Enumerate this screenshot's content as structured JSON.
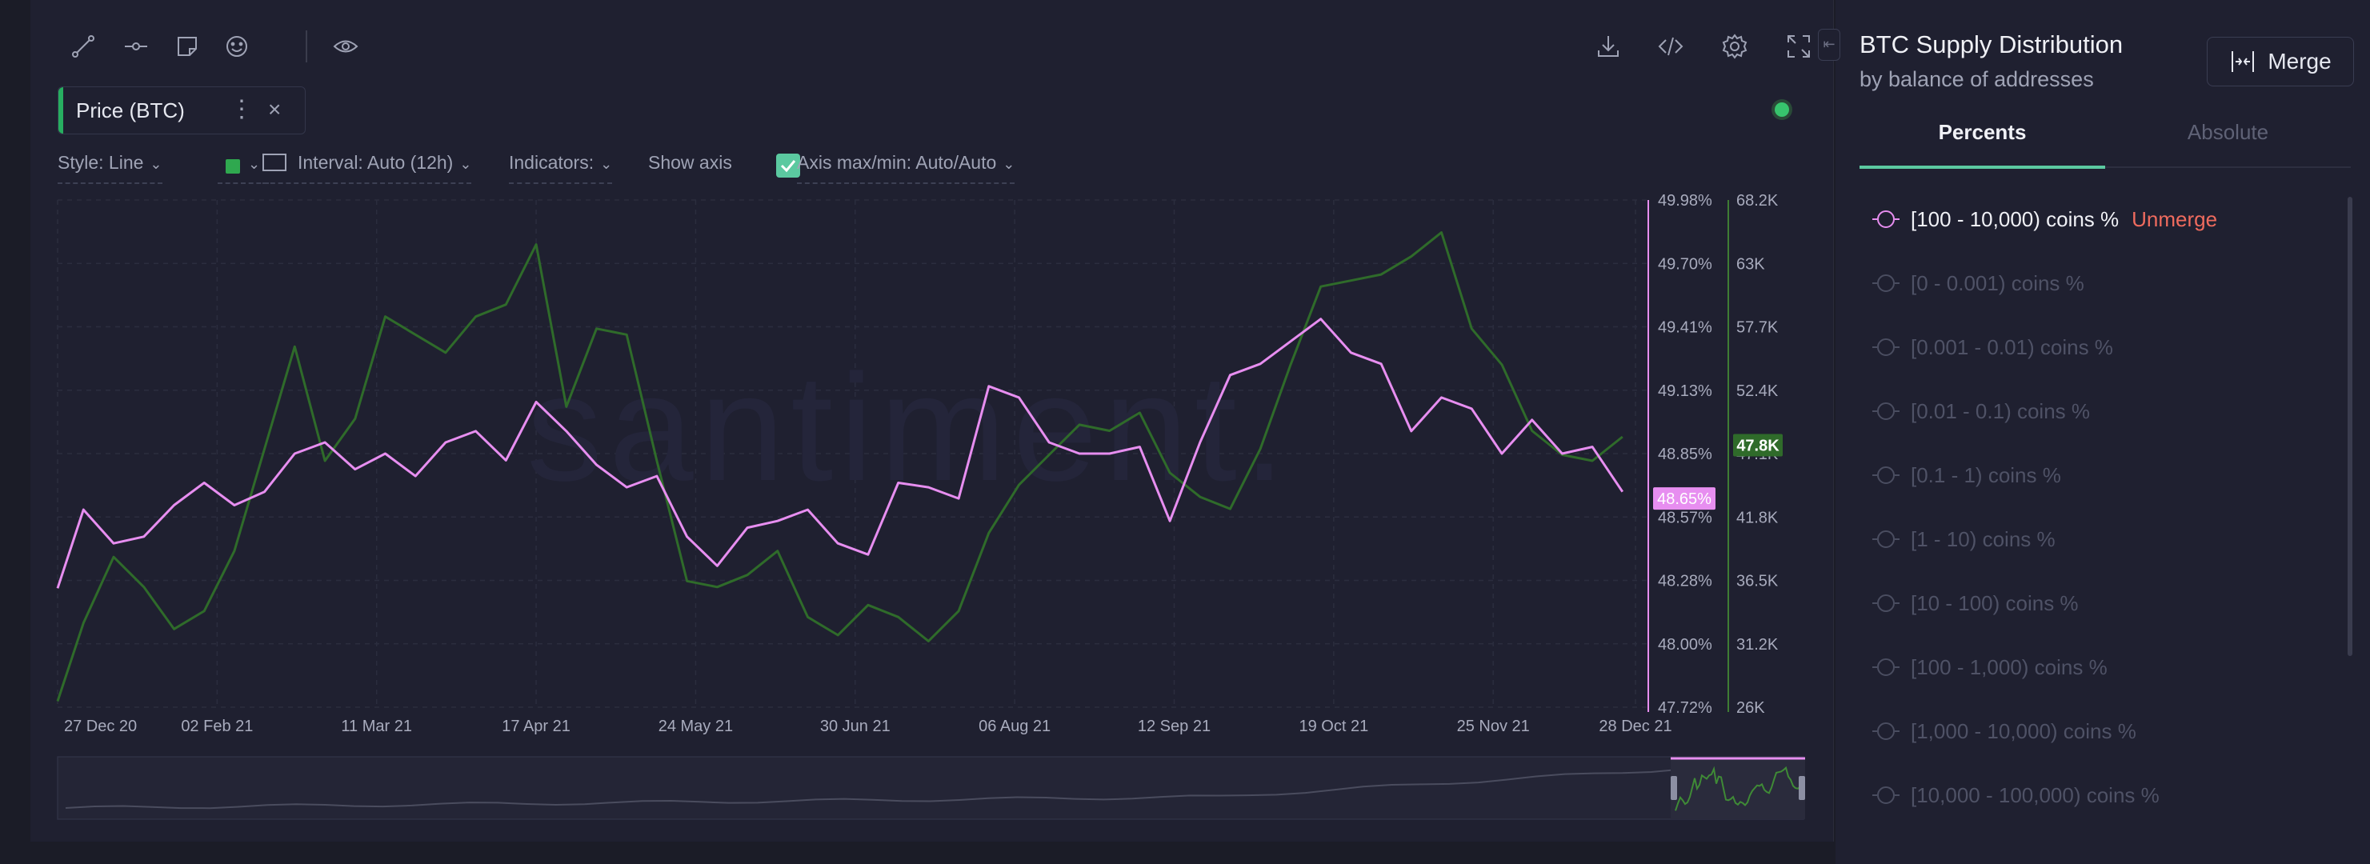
{
  "toolbar": {
    "left_icons": [
      "trend-line-icon",
      "horizontal-line-icon",
      "note-icon",
      "emoji-icon",
      "eye-icon"
    ],
    "right_icons": [
      "download-icon",
      "embed-code-icon",
      "settings-icon",
      "fullscreen-icon"
    ]
  },
  "metric_chip": {
    "label": "Price (BTC)",
    "menu": "⋮",
    "close": "×"
  },
  "options": {
    "style": "Style: Line",
    "interval": "Interval: Auto (12h)",
    "indicators": "Indicators:",
    "show_axis": "Show axis",
    "axis_maxmin": "Axis max/min: Auto/Auto"
  },
  "colors": {
    "distribution": "#e78ef0",
    "price": "#2f6b2a",
    "accent": "#5bc9a0",
    "unmerge": "#ef6b5e"
  },
  "chart_data": {
    "type": "line",
    "x_tick_labels": [
      "27 Dec 20",
      "02 Feb 21",
      "11 Mar 21",
      "17 Apr 21",
      "24 May 21",
      "30 Jun 21",
      "06 Aug 21",
      "12 Sep 21",
      "19 Oct 21",
      "25 Nov 21",
      "28 Dec 21"
    ],
    "y_left": {
      "ticks": [
        "49.98%",
        "49.70%",
        "49.41%",
        "49.13%",
        "48.85%",
        "48.57%",
        "48.28%",
        "48.00%",
        "47.72%"
      ],
      "range": [
        47.72,
        49.98
      ],
      "current_label": "48.65%"
    },
    "y_right": {
      "ticks": [
        "68.2K",
        "63K",
        "57.7K",
        "52.4K",
        "47.1K",
        "41.8K",
        "36.5K",
        "31.2K",
        "26K"
      ],
      "range": [
        26000,
        68200
      ],
      "current_label": "47.8K"
    },
    "watermark": "santiment.",
    "series": [
      {
        "name": "[100 - 10,000) coins %",
        "color": "#e78ef0",
        "x": [
          "27 Dec 20",
          "02 Jan 21",
          "09 Jan 21",
          "16 Jan 21",
          "23 Jan 21",
          "30 Jan 21",
          "06 Feb 21",
          "13 Feb 21",
          "20 Feb 21",
          "27 Feb 21",
          "06 Mar 21",
          "13 Mar 21",
          "20 Mar 21",
          "27 Mar 21",
          "03 Apr 21",
          "10 Apr 21",
          "17 Apr 21",
          "24 Apr 21",
          "01 May 21",
          "08 May 21",
          "15 May 21",
          "22 May 21",
          "29 May 21",
          "05 Jun 21",
          "12 Jun 21",
          "19 Jun 21",
          "26 Jun 21",
          "03 Jul 21",
          "10 Jul 21",
          "17 Jul 21",
          "24 Jul 21",
          "31 Jul 21",
          "07 Aug 21",
          "14 Aug 21",
          "21 Aug 21",
          "28 Aug 21",
          "04 Sep 21",
          "11 Sep 21",
          "18 Sep 21",
          "25 Sep 21",
          "02 Oct 21",
          "09 Oct 21",
          "16 Oct 21",
          "23 Oct 21",
          "30 Oct 21",
          "06 Nov 21",
          "13 Nov 21",
          "20 Nov 21",
          "27 Nov 21",
          "04 Dec 21",
          "11 Dec 21",
          "18 Dec 21",
          "25 Dec 21"
        ],
        "values": [
          48.25,
          48.6,
          48.45,
          48.48,
          48.62,
          48.72,
          48.62,
          48.68,
          48.85,
          48.9,
          48.78,
          48.85,
          48.75,
          48.9,
          48.95,
          48.82,
          49.08,
          48.95,
          48.8,
          48.7,
          48.75,
          48.48,
          48.35,
          48.52,
          48.55,
          48.6,
          48.45,
          48.4,
          48.72,
          48.7,
          48.65,
          49.15,
          49.1,
          48.9,
          48.85,
          48.85,
          48.88,
          48.55,
          48.9,
          49.2,
          49.25,
          49.35,
          49.45,
          49.3,
          49.25,
          48.95,
          49.1,
          49.05,
          48.85,
          49.0,
          48.85,
          48.88,
          48.68
        ]
      },
      {
        "name": "Price (BTC)",
        "color": "#2f6b2a",
        "x": [
          "27 Dec 20",
          "02 Jan 21",
          "09 Jan 21",
          "16 Jan 21",
          "23 Jan 21",
          "30 Jan 21",
          "06 Feb 21",
          "13 Feb 21",
          "20 Feb 21",
          "27 Feb 21",
          "06 Mar 21",
          "13 Mar 21",
          "20 Mar 21",
          "27 Mar 21",
          "03 Apr 21",
          "10 Apr 21",
          "17 Apr 21",
          "24 Apr 21",
          "01 May 21",
          "08 May 21",
          "15 May 21",
          "22 May 21",
          "29 May 21",
          "05 Jun 21",
          "12 Jun 21",
          "19 Jun 21",
          "26 Jun 21",
          "03 Jul 21",
          "10 Jul 21",
          "17 Jul 21",
          "24 Jul 21",
          "31 Jul 21",
          "07 Aug 21",
          "14 Aug 21",
          "21 Aug 21",
          "28 Aug 21",
          "04 Sep 21",
          "11 Sep 21",
          "18 Sep 21",
          "25 Sep 21",
          "02 Oct 21",
          "09 Oct 21",
          "16 Oct 21",
          "23 Oct 21",
          "30 Oct 21",
          "06 Nov 21",
          "13 Nov 21",
          "20 Nov 21",
          "27 Nov 21",
          "04 Dec 21",
          "11 Dec 21",
          "18 Dec 21",
          "25 Dec 21"
        ],
        "values": [
          26500,
          33000,
          38500,
          36000,
          32500,
          34000,
          39000,
          47500,
          56000,
          46500,
          50000,
          58500,
          57000,
          55500,
          58500,
          59500,
          64500,
          51000,
          57500,
          57000,
          46500,
          36500,
          36000,
          37000,
          39000,
          33500,
          32000,
          34500,
          33500,
          31500,
          34000,
          40500,
          44500,
          47000,
          49500,
          49000,
          50500,
          45500,
          43500,
          42500,
          47500,
          54500,
          61000,
          61500,
          62000,
          63500,
          65500,
          57500,
          54500,
          49000,
          47000,
          46500,
          48500
        ]
      }
    ]
  },
  "side": {
    "title": "BTC Supply Distribution",
    "subtitle": "by balance of addresses",
    "merge_label": "Merge",
    "tabs": [
      "Percents",
      "Absolute"
    ],
    "items": [
      {
        "label": "[100 - 10,000) coins %",
        "extra": "Unmerge",
        "active": true
      },
      {
        "label": "[0 - 0.001) coins %"
      },
      {
        "label": "[0.001 - 0.01) coins %"
      },
      {
        "label": "[0.01 - 0.1) coins %"
      },
      {
        "label": "[0.1 - 1) coins %"
      },
      {
        "label": "[1 - 10) coins %"
      },
      {
        "label": "[10 - 100) coins %"
      },
      {
        "label": "[100 - 1,000) coins %"
      },
      {
        "label": "[1,000 - 10,000) coins %"
      },
      {
        "label": "[10,000 - 100,000) coins %"
      }
    ]
  }
}
